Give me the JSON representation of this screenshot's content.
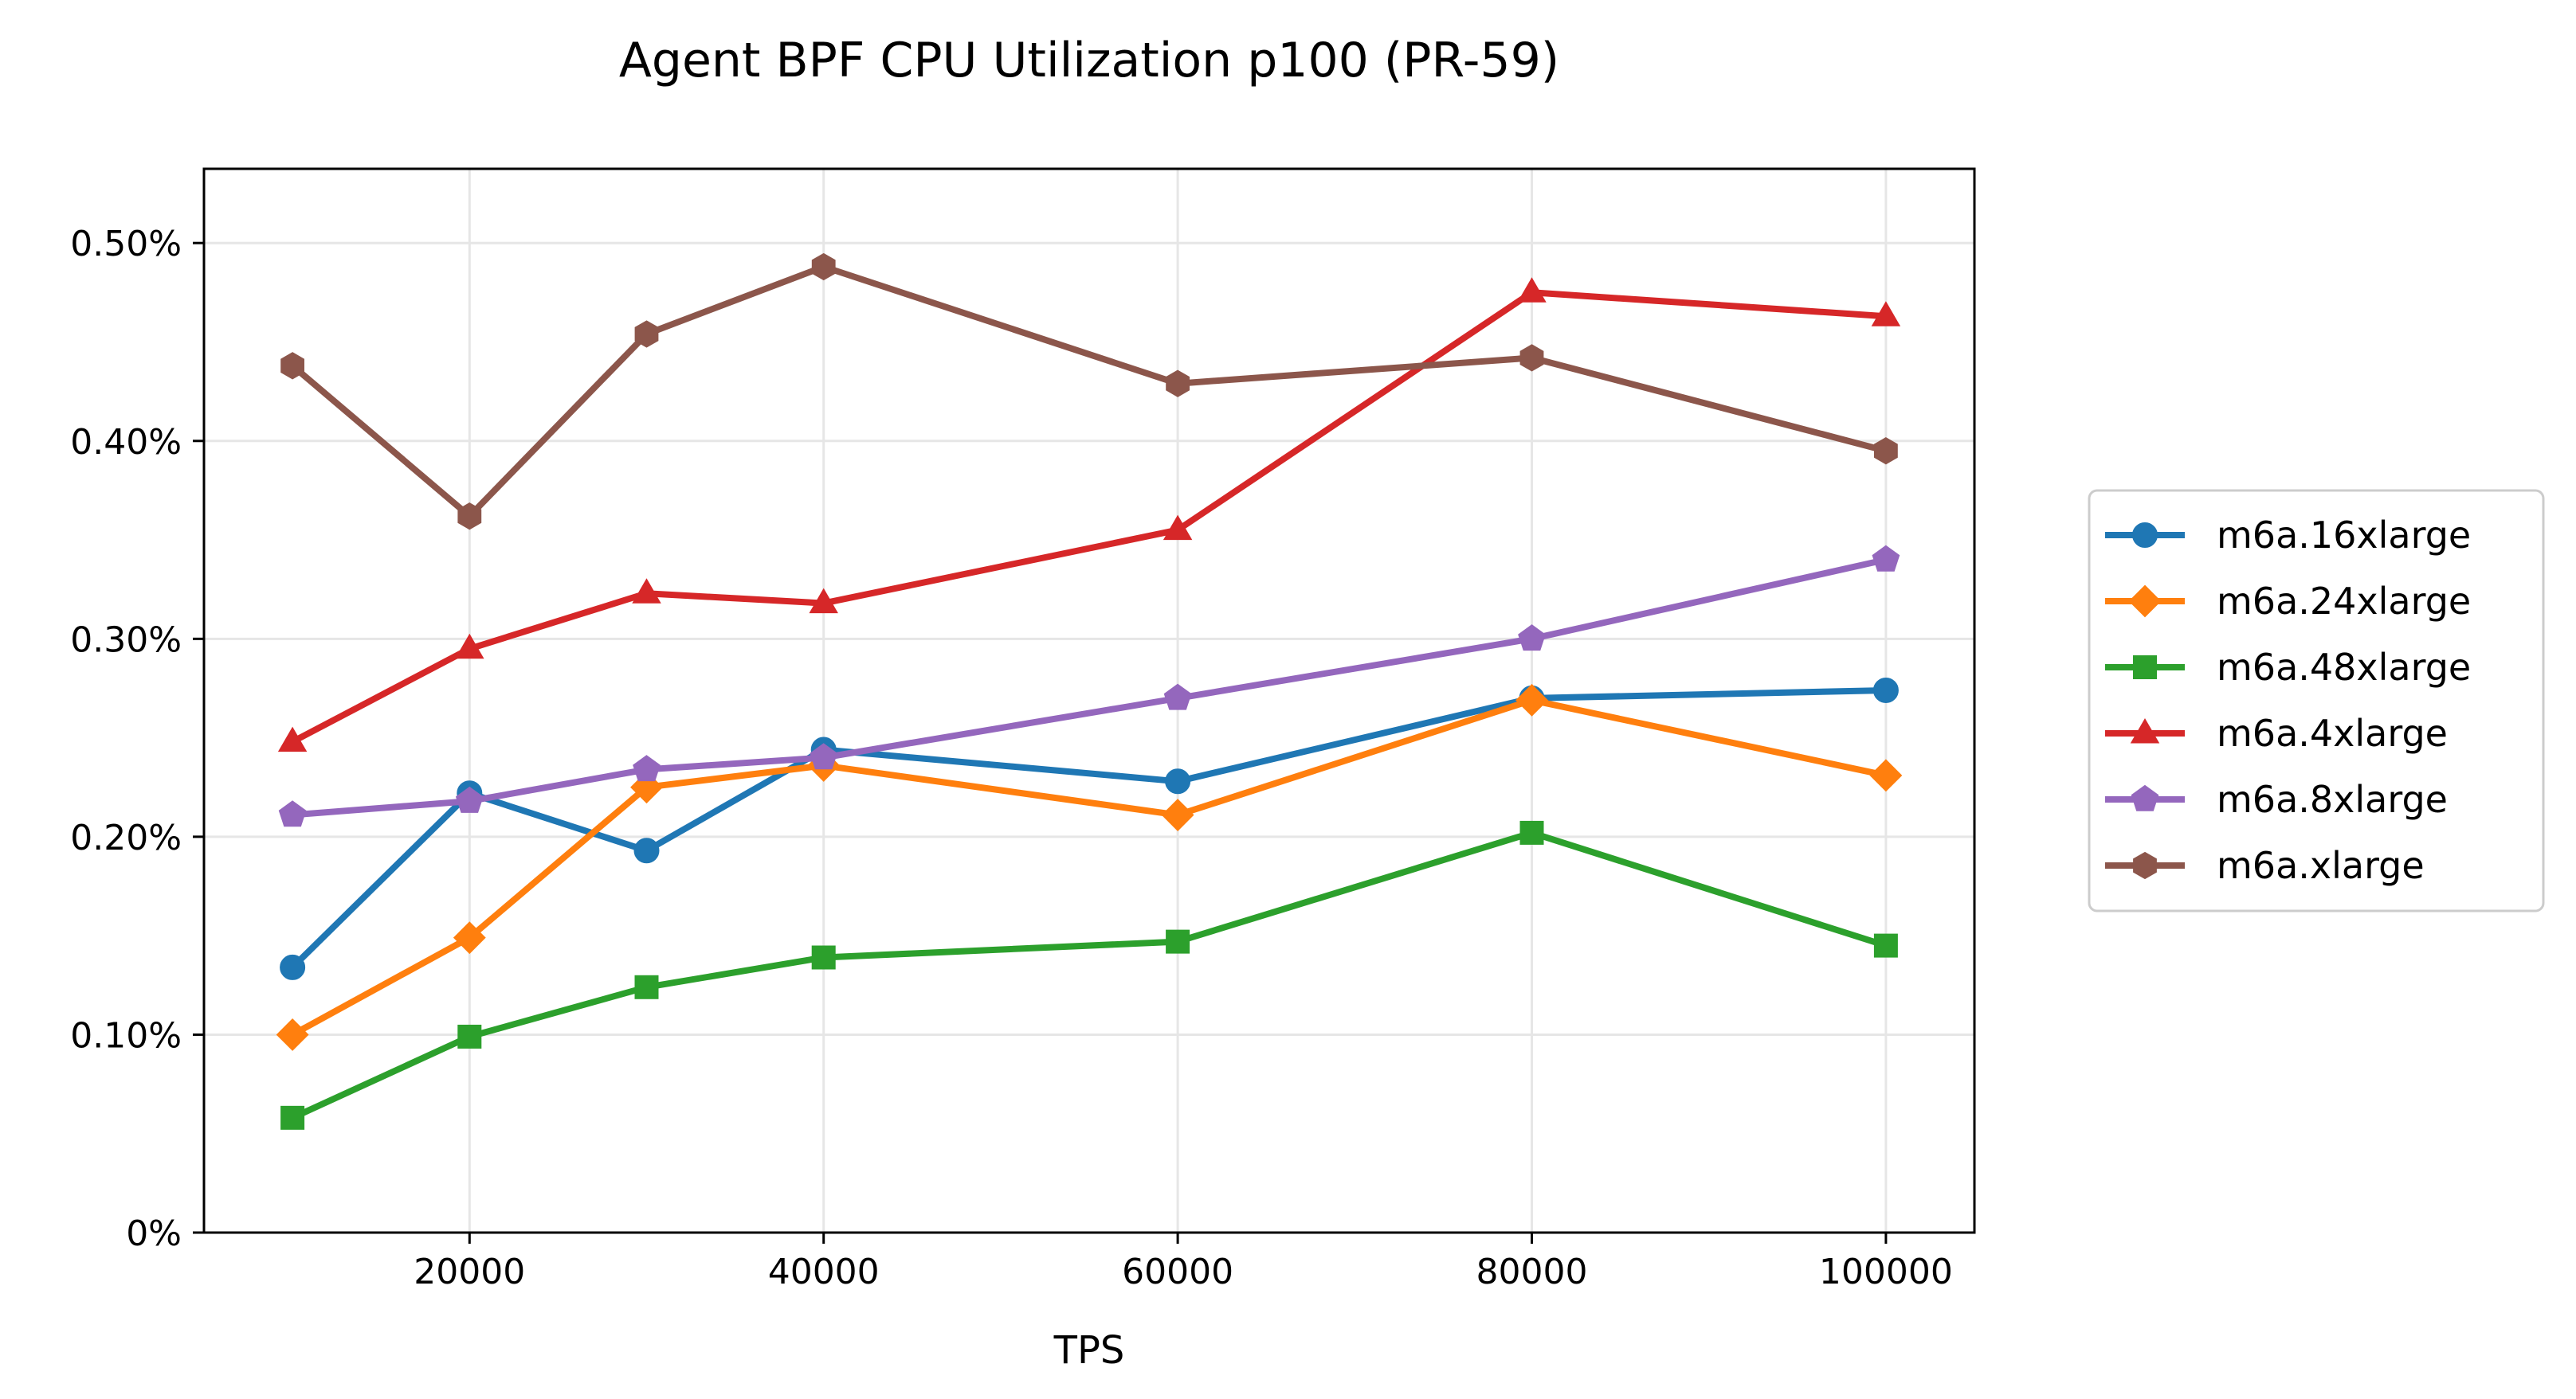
{
  "chart_data": {
    "type": "line",
    "title": "Agent BPF CPU Utilization p100 (PR-59)",
    "xlabel": "TPS",
    "ylabel": "",
    "xlim": [
      5000,
      105000
    ],
    "ylim": [
      0,
      0.5375
    ],
    "x_ticks": [
      20000,
      40000,
      60000,
      80000,
      100000
    ],
    "y_ticks": [
      0,
      0.1,
      0.2,
      0.3,
      0.4,
      0.5
    ],
    "y_tick_labels": [
      "0%",
      "0.10%",
      "0.20%",
      "0.30%",
      "0.40%",
      "0.50%"
    ],
    "grid": true,
    "legend_position": "outside-right",
    "x": [
      10000,
      20000,
      30000,
      40000,
      60000,
      80000,
      100000
    ],
    "series": [
      {
        "name": "m6a.16xlarge",
        "color": "#1f77b4",
        "marker": "circle",
        "values": [
          0.134,
          0.222,
          0.193,
          0.244,
          0.228,
          0.27,
          0.274
        ]
      },
      {
        "name": "m6a.24xlarge",
        "color": "#ff7f0e",
        "marker": "diamond",
        "values": [
          0.1,
          0.149,
          0.225,
          0.236,
          0.211,
          0.269,
          0.231
        ]
      },
      {
        "name": "m6a.48xlarge",
        "color": "#2ca02c",
        "marker": "square",
        "values": [
          0.058,
          0.099,
          0.124,
          0.139,
          0.147,
          0.202,
          0.145
        ]
      },
      {
        "name": "m6a.4xlarge",
        "color": "#d62728",
        "marker": "triangle",
        "values": [
          0.248,
          0.295,
          0.323,
          0.318,
          0.355,
          0.475,
          0.463
        ]
      },
      {
        "name": "m6a.8xlarge",
        "color": "#9467bd",
        "marker": "pentagon",
        "values": [
          0.211,
          0.218,
          0.234,
          0.24,
          0.27,
          0.3,
          0.34
        ]
      },
      {
        "name": "m6a.xlarge",
        "color": "#8c564b",
        "marker": "hexagon",
        "values": [
          0.438,
          0.362,
          0.454,
          0.488,
          0.429,
          0.442,
          0.395
        ]
      }
    ]
  }
}
